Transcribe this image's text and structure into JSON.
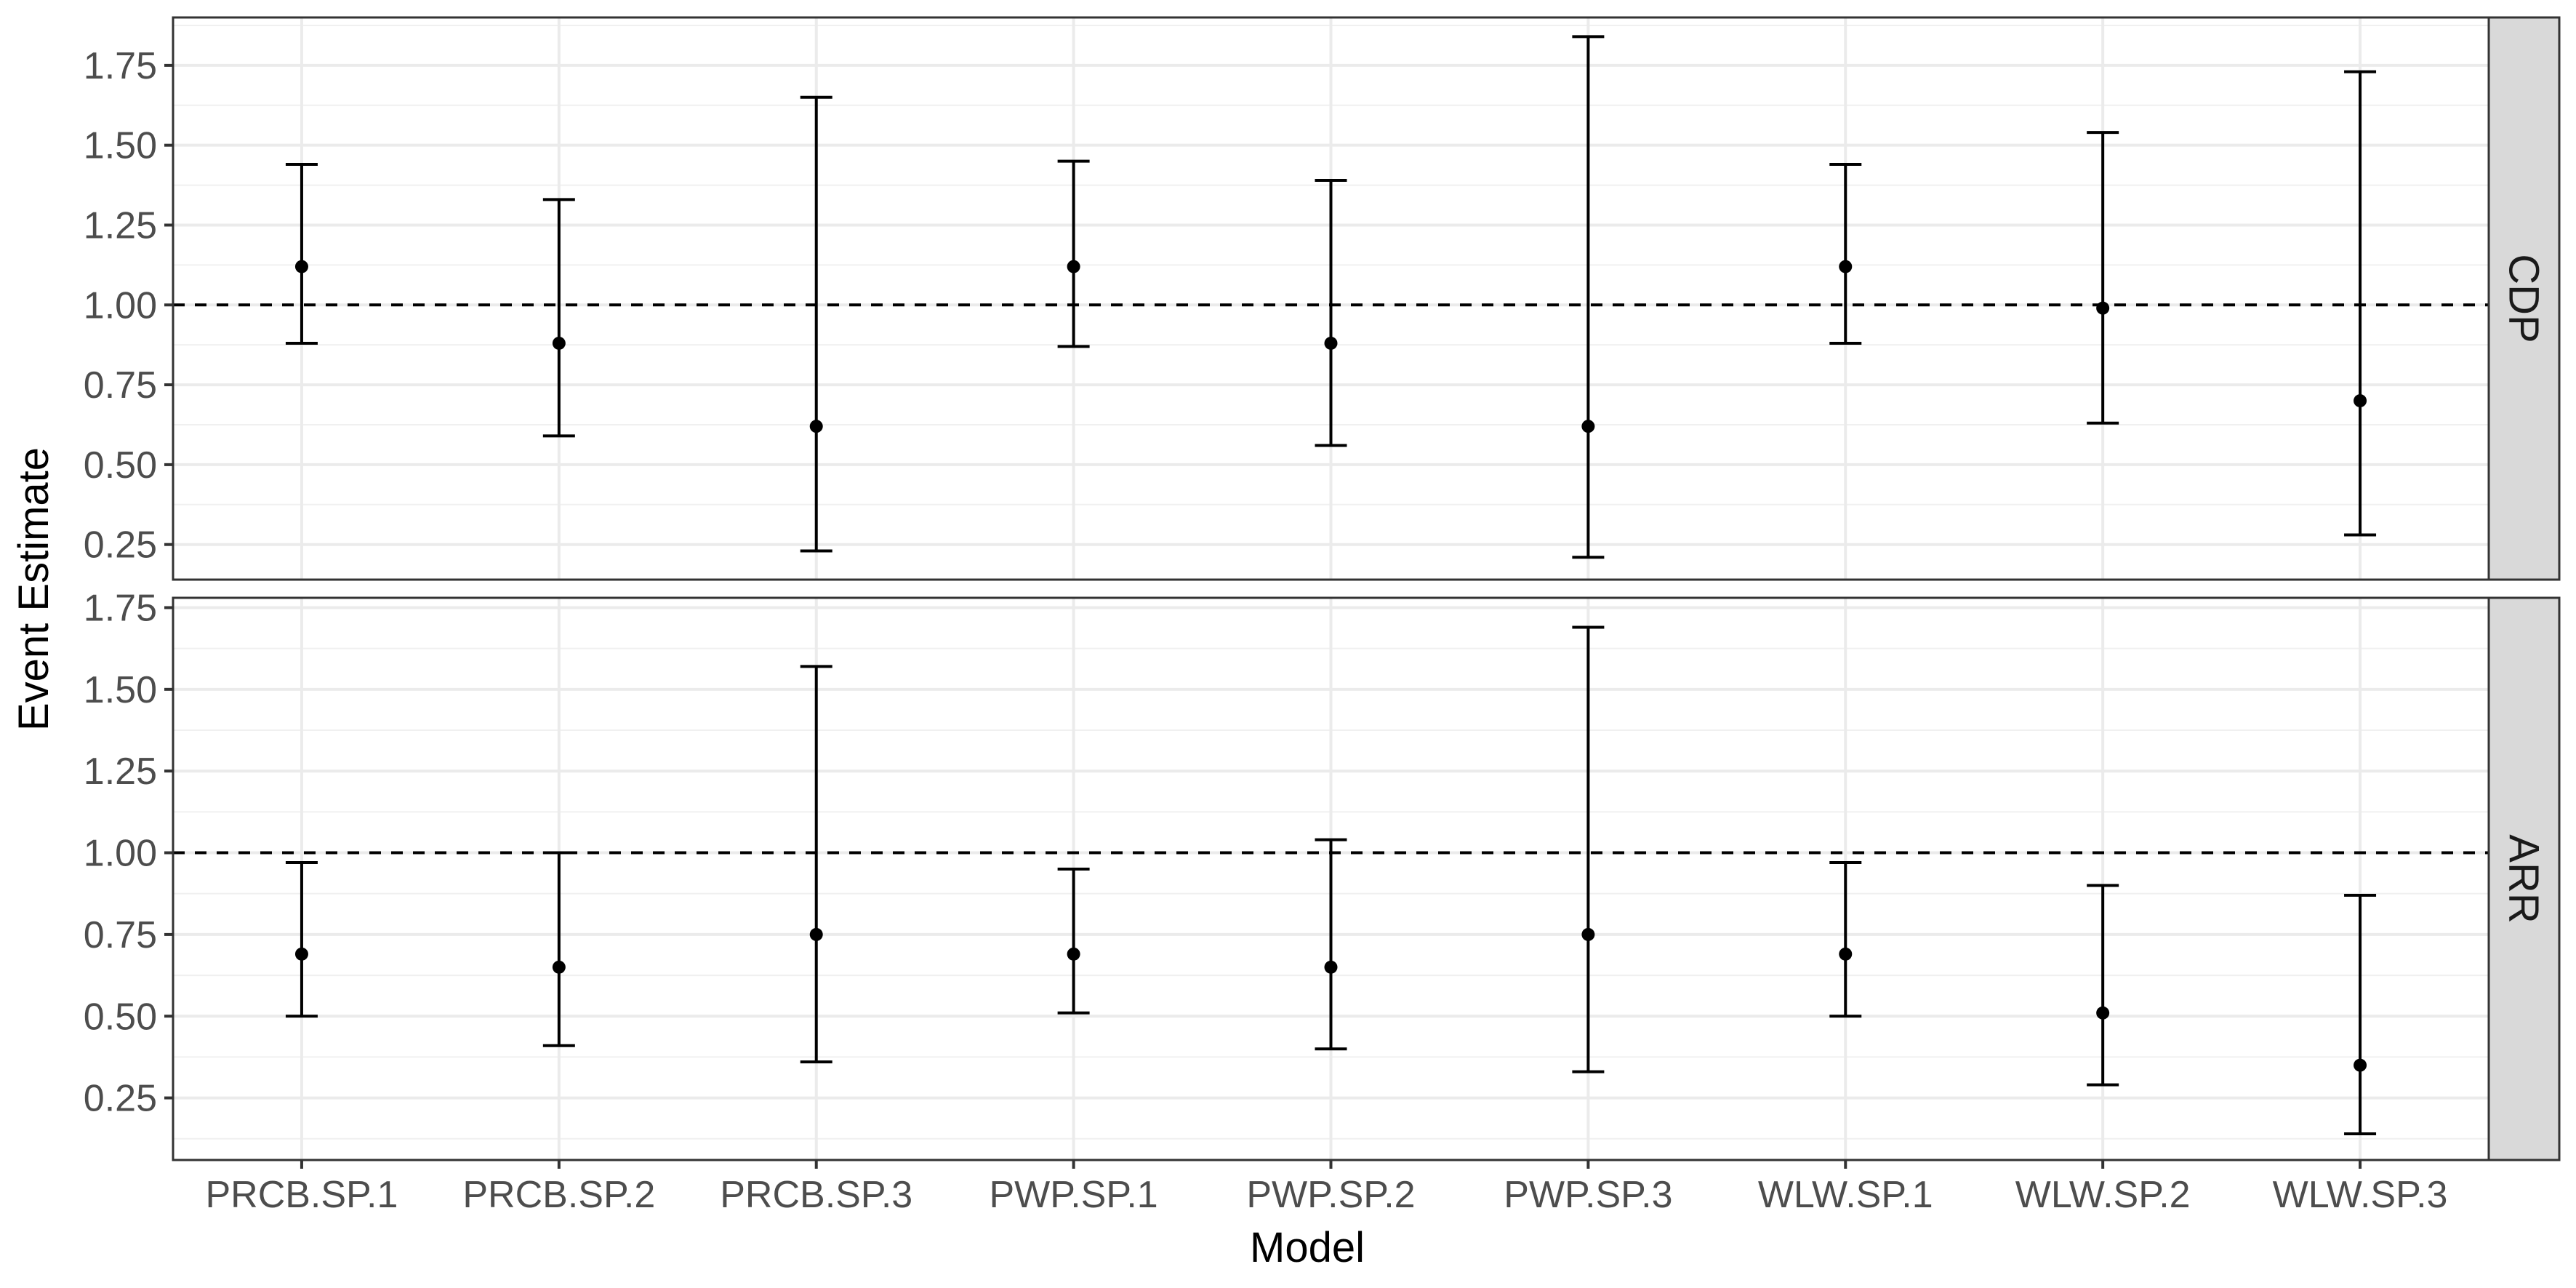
{
  "chart_data": {
    "type": "errorbar",
    "xlabel": "Model",
    "ylabel": "Event Estimate",
    "categories": [
      "PRCB.SP.1",
      "PRCB.SP.2",
      "PRCB.SP.3",
      "PWP.SP.1",
      "PWP.SP.2",
      "PWP.SP.3",
      "WLW.SP.1",
      "WLW.SP.2",
      "WLW.SP.3"
    ],
    "reference_line": 1.0,
    "grid": true,
    "panels": [
      {
        "facet": "CDP",
        "ylim": [
          0.14,
          1.9
        ],
        "yticks": [
          "0.25",
          "0.50",
          "0.75",
          "1.00",
          "1.25",
          "1.50",
          "1.75"
        ],
        "estimates": [
          1.12,
          0.88,
          0.62,
          1.12,
          0.88,
          0.62,
          1.12,
          0.99,
          0.7
        ],
        "lower": [
          0.88,
          0.59,
          0.23,
          0.87,
          0.56,
          0.21,
          0.88,
          0.63,
          0.28
        ],
        "upper": [
          1.44,
          1.33,
          1.65,
          1.45,
          1.39,
          1.84,
          1.44,
          1.54,
          1.73
        ]
      },
      {
        "facet": "ARR",
        "ylim": [
          0.06,
          1.78
        ],
        "yticks": [
          "0.25",
          "0.50",
          "0.75",
          "1.00",
          "1.25",
          "1.50",
          "1.75"
        ],
        "estimates": [
          0.69,
          0.65,
          0.75,
          0.69,
          0.65,
          0.75,
          0.69,
          0.51,
          0.35
        ],
        "lower": [
          0.5,
          0.41,
          0.36,
          0.51,
          0.4,
          0.33,
          0.5,
          0.29,
          0.14
        ],
        "upper": [
          0.97,
          1.0,
          1.57,
          0.95,
          1.04,
          1.69,
          0.97,
          0.9,
          0.87
        ]
      }
    ]
  }
}
